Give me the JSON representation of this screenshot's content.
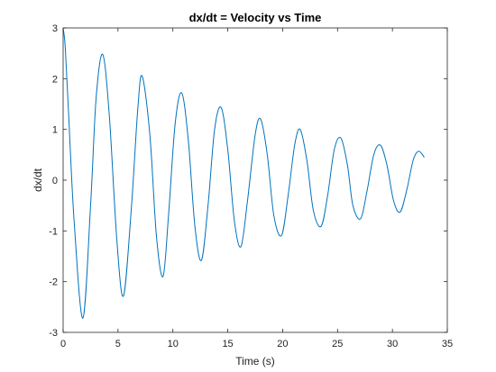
{
  "chart_data": {
    "type": "line",
    "title": "dx/dt = Velocity vs Time",
    "xlabel": "Time (s)",
    "ylabel": "dx/dt",
    "xlim": [
      0,
      35
    ],
    "ylim": [
      -3,
      3
    ],
    "xticks": [
      0,
      5,
      10,
      15,
      20,
      25,
      30,
      35
    ],
    "yticks": [
      -3,
      -2,
      -1,
      0,
      1,
      2,
      3
    ],
    "grid": false,
    "line_color": "#0072BD",
    "series": [
      {
        "x": [
          0,
          0.2,
          0.5,
          1.0,
          1.8,
          2.5,
          3.0,
          3.6,
          4.2,
          4.9,
          5.5,
          6.2,
          6.8,
          7.2,
          7.9,
          8.5,
          9.1,
          9.6,
          10.2,
          10.8,
          11.4,
          12.0,
          12.6,
          13.2,
          13.8,
          14.4,
          15.0,
          15.6,
          16.2,
          16.8,
          17.5,
          18.0,
          18.6,
          19.2,
          19.9,
          20.5,
          21.1,
          21.6,
          22.2,
          22.8,
          23.5,
          24.1,
          24.7,
          25.3,
          25.9,
          26.4,
          27.1,
          27.7,
          28.3,
          28.9,
          29.5,
          30.1,
          30.7,
          31.3,
          31.9,
          32.4,
          32.9
        ],
        "y": [
          3.0,
          2.6,
          1.3,
          -0.8,
          -2.72,
          -0.5,
          1.6,
          2.48,
          1.3,
          -1.2,
          -2.28,
          -0.6,
          1.4,
          2.05,
          0.9,
          -1.1,
          -1.9,
          -0.7,
          1.1,
          1.72,
          0.8,
          -0.9,
          -1.58,
          -0.5,
          1.0,
          1.43,
          0.6,
          -0.8,
          -1.31,
          -0.4,
          0.9,
          1.2,
          0.5,
          -0.7,
          -1.09,
          -0.3,
          0.7,
          1.0,
          0.4,
          -0.6,
          -0.91,
          -0.3,
          0.6,
          0.83,
          0.3,
          -0.5,
          -0.76,
          -0.2,
          0.5,
          0.69,
          0.3,
          -0.4,
          -0.63,
          -0.2,
          0.4,
          0.57,
          0.45
        ]
      }
    ]
  }
}
